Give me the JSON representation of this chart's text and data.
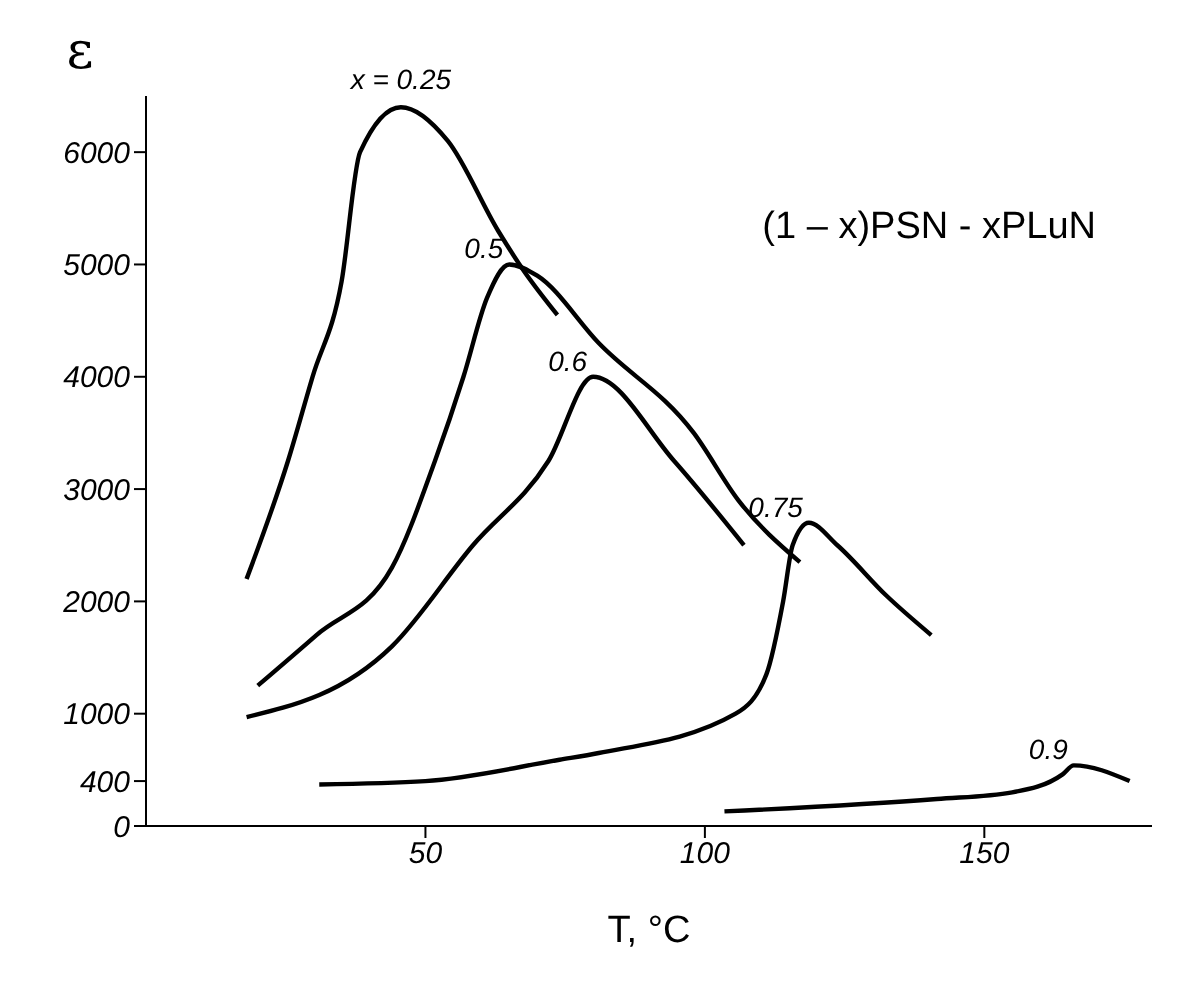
{
  "chart_data": {
    "type": "line",
    "title": "(1 – x)PSN - xPLuN",
    "xlabel": "T, °C",
    "ylabel": "ε",
    "xlim": [
      0,
      180
    ],
    "xticks": [
      50,
      100,
      150
    ],
    "ylim": [
      0,
      6500
    ],
    "yticks": [
      0,
      400,
      1000,
      2000,
      3000,
      4000,
      5000,
      6000
    ],
    "grid": false,
    "legend": false,
    "marker": "none",
    "series": [
      {
        "name": "x = 0.25",
        "color": "#000000",
        "x": [
          18,
          25.4,
          29.8,
          35,
          38.3,
          45.6,
          54,
          63,
          67.5,
          73.6
        ],
        "values": [
          2200,
          3250,
          4000,
          4850,
          6000,
          6400,
          6100,
          5300,
          4950,
          4550
        ]
      },
      {
        "name": "0.5",
        "color": "#000000",
        "x": [
          20,
          30.5,
          44,
          51.7,
          56.8,
          61,
          65,
          70,
          81,
          98,
          106,
          117
        ],
        "values": [
          1250,
          1700,
          2300,
          3250,
          4000,
          4700,
          5000,
          4900,
          4300,
          3500,
          2900,
          2350
        ]
      },
      {
        "name": "0.6",
        "color": "#000000",
        "x": [
          18,
          44,
          58.5,
          72,
          80,
          94.5,
          107
        ],
        "values": [
          970,
          1600,
          2500,
          3250,
          4000,
          3250,
          2500
        ]
      },
      {
        "name": "0.75",
        "color": "#000000",
        "x": [
          31,
          50,
          74,
          81,
          105.5,
          111,
          114,
          115.7,
          118.6,
          123.7,
          132.5,
          140.5
        ],
        "values": [
          370,
          400,
          590,
          650,
          1000,
          1350,
          2000,
          2500,
          2700,
          2500,
          2050,
          1700
        ]
      },
      {
        "name": "0.9",
        "color": "#000000",
        "x": [
          103.5,
          141.5,
          155,
          164,
          166,
          176
        ],
        "values": [
          130,
          240,
          300,
          460,
          540,
          400
        ]
      }
    ]
  }
}
